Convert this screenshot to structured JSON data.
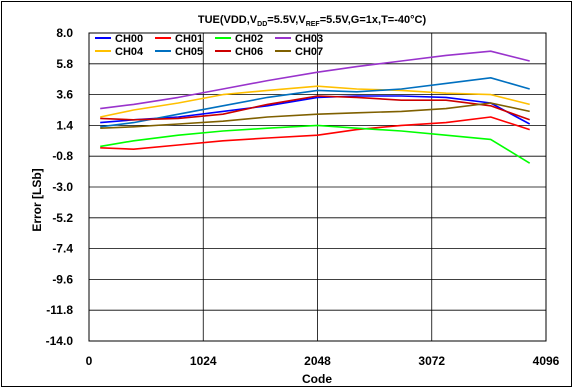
{
  "chart_data": {
    "type": "line",
    "title_parts": [
      "TUE(VDD,V",
      "DD",
      "=5.5V,V",
      "REF",
      "=5.5V,G=1x,T=-40°C)"
    ],
    "xlabel": "Code",
    "ylabel": "Error [LSb]",
    "xlim": [
      0,
      4096
    ],
    "ylim": [
      -14.0,
      8.0
    ],
    "x_ticks": [
      0,
      1024,
      2048,
      3072,
      4096
    ],
    "y_ticks": [
      8.0,
      5.8,
      3.6,
      1.4,
      -0.8,
      -3.0,
      -5.2,
      -7.4,
      -9.6,
      -11.8,
      -14.0
    ],
    "y_tick_labels": [
      "8.0",
      "5.8",
      "3.6",
      "1.4",
      "-0.8",
      "-3.0",
      "-5.2",
      "-7.4",
      "-9.6",
      "-11.8",
      "-14.0"
    ],
    "grid": true,
    "legend_position": "top-left",
    "x": [
      100,
      400,
      800,
      1200,
      1600,
      2048,
      2400,
      2800,
      3200,
      3600,
      3950
    ],
    "series": [
      {
        "name": "CH00",
        "color": "#0000ff",
        "values": [
          1.6,
          1.8,
          2.0,
          2.4,
          2.8,
          3.4,
          3.5,
          3.5,
          3.4,
          3.0,
          1.5
        ]
      },
      {
        "name": "CH01",
        "color": "#ff0000",
        "values": [
          -0.2,
          -0.3,
          0.0,
          0.3,
          0.5,
          0.7,
          1.1,
          1.4,
          1.6,
          2.0,
          1.1
        ]
      },
      {
        "name": "CH02",
        "color": "#00ff00",
        "values": [
          -0.1,
          0.3,
          0.7,
          1.0,
          1.2,
          1.4,
          1.2,
          1.0,
          0.7,
          0.4,
          -1.3
        ]
      },
      {
        "name": "CH03",
        "color": "#9933cc",
        "values": [
          2.6,
          2.9,
          3.4,
          4.0,
          4.6,
          5.2,
          5.6,
          6.0,
          6.4,
          6.7,
          6.0
        ]
      },
      {
        "name": "CH04",
        "color": "#ffc000",
        "values": [
          2.0,
          2.5,
          3.0,
          3.6,
          3.9,
          4.2,
          4.0,
          3.9,
          3.7,
          3.6,
          2.9
        ]
      },
      {
        "name": "CH05",
        "color": "#0070c0",
        "values": [
          1.3,
          1.6,
          2.2,
          2.8,
          3.4,
          3.9,
          3.8,
          4.0,
          4.4,
          4.8,
          4.0
        ]
      },
      {
        "name": "CH06",
        "color": "#cc0000",
        "values": [
          1.9,
          1.8,
          1.9,
          2.2,
          2.9,
          3.5,
          3.4,
          3.2,
          3.2,
          2.8,
          1.8
        ]
      },
      {
        "name": "CH07",
        "color": "#7f6000",
        "values": [
          1.2,
          1.3,
          1.5,
          1.7,
          2.0,
          2.2,
          2.3,
          2.4,
          2.6,
          3.0,
          2.4
        ]
      }
    ]
  }
}
